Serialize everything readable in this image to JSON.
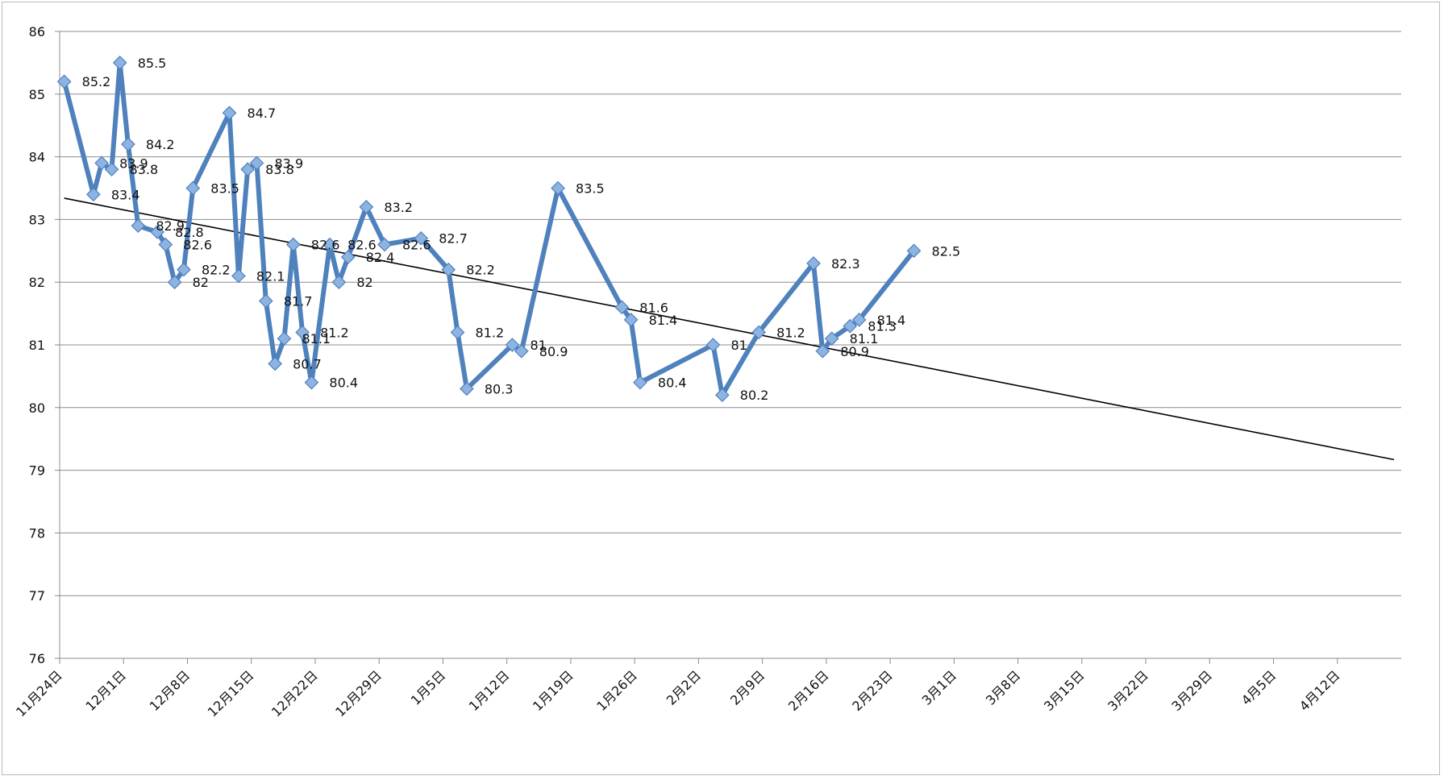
{
  "chart_data": {
    "type": "line",
    "title": "",
    "xlabel": "",
    "ylabel": "",
    "ylim": [
      76,
      86
    ],
    "yticks": [
      76,
      77,
      78,
      79,
      80,
      81,
      82,
      83,
      84,
      85,
      86
    ],
    "xlim_days": [
      0,
      147
    ],
    "x_ticks": [
      {
        "day": 0,
        "label": "11月24日"
      },
      {
        "day": 7,
        "label": "12月1日"
      },
      {
        "day": 14,
        "label": "12月8日"
      },
      {
        "day": 21,
        "label": "12月15日"
      },
      {
        "day": 28,
        "label": "12月22日"
      },
      {
        "day": 35,
        "label": "12月29日"
      },
      {
        "day": 42,
        "label": "1月5日"
      },
      {
        "day": 49,
        "label": "1月12日"
      },
      {
        "day": 56,
        "label": "1月19日"
      },
      {
        "day": 63,
        "label": "1月26日"
      },
      {
        "day": 70,
        "label": "2月2日"
      },
      {
        "day": 77,
        "label": "2月9日"
      },
      {
        "day": 84,
        "label": "2月16日"
      },
      {
        "day": 91,
        "label": "2月23日"
      },
      {
        "day": 98,
        "label": "3月1日"
      },
      {
        "day": 105,
        "label": "3月8日"
      },
      {
        "day": 112,
        "label": "3月15日"
      },
      {
        "day": 119,
        "label": "3月22日"
      },
      {
        "day": 126,
        "label": "3月29日"
      },
      {
        "day": 133,
        "label": "4月5日"
      },
      {
        "day": 140,
        "label": "4月12日"
      }
    ],
    "grid": true,
    "legend": "none",
    "series": [
      {
        "color": "#4f81bd",
        "marker_color": "#8db3e2",
        "points": [
          {
            "day": 0.5,
            "value": 85.2,
            "label": "85.2"
          },
          {
            "day": 3.7,
            "value": 83.4,
            "label": "83.4"
          },
          {
            "day": 4.6,
            "value": 83.9,
            "label": "83.9"
          },
          {
            "day": 5.7,
            "value": 83.8,
            "label": "83.8"
          },
          {
            "day": 6.6,
            "value": 85.5,
            "label": "85.5"
          },
          {
            "day": 7.5,
            "value": 84.2,
            "label": "84.2"
          },
          {
            "day": 8.6,
            "value": 82.9,
            "label": "82.9"
          },
          {
            "day": 10.7,
            "value": 82.8,
            "label": "82.8"
          },
          {
            "day": 11.6,
            "value": 82.6,
            "label": "82.6"
          },
          {
            "day": 12.6,
            "value": 82.0,
            "label": "82"
          },
          {
            "day": 13.6,
            "value": 82.2,
            "label": "82.2"
          },
          {
            "day": 14.6,
            "value": 83.5,
            "label": "83.5"
          },
          {
            "day": 18.6,
            "value": 84.7,
            "label": "84.7"
          },
          {
            "day": 19.6,
            "value": 82.1,
            "label": "82.1"
          },
          {
            "day": 20.6,
            "value": 83.8,
            "label": "83.8"
          },
          {
            "day": 21.6,
            "value": 83.9,
            "label": "83.9"
          },
          {
            "day": 22.6,
            "value": 81.7,
            "label": "81.7"
          },
          {
            "day": 23.6,
            "value": 80.7,
            "label": "80.7"
          },
          {
            "day": 24.6,
            "value": 81.1,
            "label": "81.1"
          },
          {
            "day": 25.6,
            "value": 82.6,
            "label": "82.6"
          },
          {
            "day": 26.6,
            "value": 81.2,
            "label": "81.2"
          },
          {
            "day": 27.6,
            "value": 80.4,
            "label": "80.4"
          },
          {
            "day": 29.6,
            "value": 82.6,
            "label": "82.6"
          },
          {
            "day": 30.6,
            "value": 82.0,
            "label": "82"
          },
          {
            "day": 31.6,
            "value": 82.4,
            "label": "82.4"
          },
          {
            "day": 33.6,
            "value": 83.2,
            "label": "83.2"
          },
          {
            "day": 35.6,
            "value": 82.6,
            "label": "82.6"
          },
          {
            "day": 39.6,
            "value": 82.7,
            "label": "82.7"
          },
          {
            "day": 42.6,
            "value": 82.2,
            "label": "82.2"
          },
          {
            "day": 43.6,
            "value": 81.2,
            "label": "81.2"
          },
          {
            "day": 44.6,
            "value": 80.3,
            "label": "80.3"
          },
          {
            "day": 49.6,
            "value": 81.0,
            "label": "81"
          },
          {
            "day": 50.6,
            "value": 80.9,
            "label": "80.9"
          },
          {
            "day": 54.6,
            "value": 83.5,
            "label": "83.5"
          },
          {
            "day": 61.6,
            "value": 81.6,
            "label": "81.6"
          },
          {
            "day": 62.6,
            "value": 81.4,
            "label": "81.4"
          },
          {
            "day": 63.6,
            "value": 80.4,
            "label": "80.4"
          },
          {
            "day": 71.6,
            "value": 81.0,
            "label": "81"
          },
          {
            "day": 72.6,
            "value": 80.2,
            "label": "80.2"
          },
          {
            "day": 76.6,
            "value": 81.2,
            "label": "81.2"
          },
          {
            "day": 82.6,
            "value": 82.3,
            "label": "82.3"
          },
          {
            "day": 83.6,
            "value": 80.9,
            "label": "80.9"
          },
          {
            "day": 84.6,
            "value": 81.1,
            "label": "81.1"
          },
          {
            "day": 86.6,
            "value": 81.3,
            "label": "81.3"
          },
          {
            "day": 87.6,
            "value": 81.4,
            "label": "81.4"
          },
          {
            "day": 93.6,
            "value": 82.5,
            "label": "82.5"
          }
        ]
      }
    ],
    "trendline": {
      "type": "linear",
      "color": "#000000",
      "start": {
        "day": 0.5,
        "value": 83.34
      },
      "end": {
        "day": 146.2,
        "value": 79.17
      }
    }
  }
}
